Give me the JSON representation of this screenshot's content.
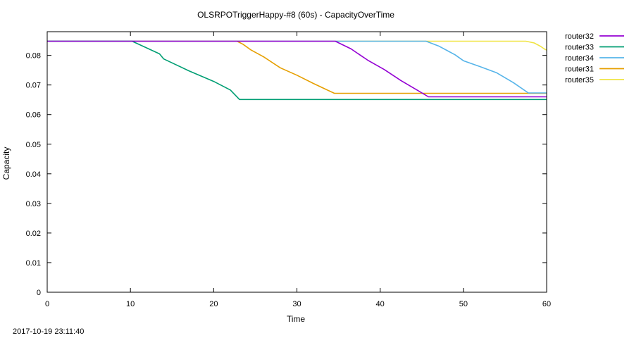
{
  "chart_data": {
    "type": "line",
    "title": "OLSRPOTriggerHappy-#8 (60s) - CapacityOverTime",
    "xlabel": "Time",
    "ylabel": "Capacity",
    "xlim": [
      0,
      60
    ],
    "ylim": [
      0,
      0.088
    ],
    "x_ticks": [
      "0",
      "10",
      "20",
      "30",
      "40",
      "50",
      "60"
    ],
    "y_ticks": [
      "0",
      "0.01",
      "0.02",
      "0.03",
      "0.04",
      "0.05",
      "0.06",
      "0.07",
      "0.08"
    ],
    "grid": false,
    "legend_position": "outside-top-right",
    "timestamp": "2017-10-19 23:11:40",
    "series": [
      {
        "name": "router32",
        "color": "#9400d3",
        "x": [
          0,
          34.6,
          36.5,
          38.5,
          40.5,
          42.5,
          44.5,
          45.8,
          60
        ],
        "y": [
          0.0848,
          0.0848,
          0.0822,
          0.0784,
          0.0752,
          0.0715,
          0.0682,
          0.066,
          0.066
        ]
      },
      {
        "name": "router33",
        "color": "#009e73",
        "x": [
          0,
          10.2,
          13.5,
          14,
          17,
          20,
          22,
          23.1,
          60
        ],
        "y": [
          0.0848,
          0.0848,
          0.0805,
          0.0788,
          0.0748,
          0.0712,
          0.0683,
          0.0651,
          0.0651
        ]
      },
      {
        "name": "router34",
        "color": "#56b4e9",
        "x": [
          0,
          45.5,
          47,
          49,
          50,
          52,
          54,
          56,
          57.8,
          60
        ],
        "y": [
          0.0848,
          0.0848,
          0.0832,
          0.0802,
          0.0782,
          0.0762,
          0.0741,
          0.0708,
          0.0673,
          0.0673
        ]
      },
      {
        "name": "router31",
        "color": "#e69f00",
        "x": [
          0,
          22.8,
          23.5,
          24.5,
          26,
          28,
          30,
          32,
          33.5,
          34.5,
          60
        ],
        "y": [
          0.0848,
          0.0848,
          0.0838,
          0.0818,
          0.0795,
          0.0758,
          0.0733,
          0.0705,
          0.0685,
          0.0672,
          0.0672
        ]
      },
      {
        "name": "router35",
        "color": "#f0e442",
        "x": [
          0,
          57.5,
          58.5,
          59.3,
          59.7,
          60
        ],
        "y": [
          0.0848,
          0.0848,
          0.0842,
          0.083,
          0.0822,
          0.0818
        ]
      }
    ]
  }
}
